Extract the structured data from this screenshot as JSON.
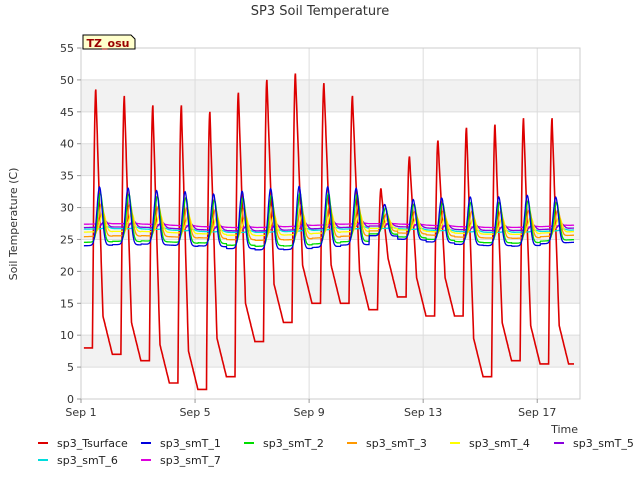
{
  "chart_data": {
    "type": "line",
    "title": "SP3 Soil Temperature",
    "xlabel": "Time",
    "ylabel": "Soil Temperature (C)",
    "badge": "TZ_osu",
    "xlim": [
      1,
      18.5
    ],
    "ylim": [
      0,
      55
    ],
    "yticks": [
      0,
      5,
      10,
      15,
      20,
      25,
      30,
      35,
      40,
      45,
      50,
      55
    ],
    "xticks": [
      {
        "value": 1,
        "label": "Sep 1"
      },
      {
        "value": 5,
        "label": "Sep 5"
      },
      {
        "value": 9,
        "label": "Sep 9"
      },
      {
        "value": 13,
        "label": "Sep 13"
      },
      {
        "value": 17,
        "label": "Sep 17"
      }
    ],
    "grid": true,
    "legend_position": "bottom",
    "day_start": 1.1,
    "day_end": 18.3,
    "surface_peaks": [
      48.5,
      47.5,
      46,
      46,
      45,
      48,
      50,
      51,
      49.5,
      47.5,
      33,
      38,
      40.5,
      42.5,
      43,
      44
    ],
    "surface_minima": [
      8,
      7,
      6,
      2.5,
      1.5,
      3.5,
      9,
      12,
      15,
      15,
      14,
      16,
      13,
      13,
      3.5,
      6,
      5.5
    ],
    "series": [
      {
        "name": "sp3_Tsurface",
        "color": "#dd0000",
        "base": 0,
        "amp": 0,
        "lag": 0
      },
      {
        "name": "sp3_smT_1",
        "color": "#0000dd",
        "base": 27,
        "amp": 9,
        "lag": 0.03
      },
      {
        "name": "sp3_smT_2",
        "color": "#00dd00",
        "base": 27,
        "amp": 7.5,
        "lag": 0.06
      },
      {
        "name": "sp3_smT_3",
        "color": "#ff9900",
        "base": 27,
        "amp": 5,
        "lag": 0.1
      },
      {
        "name": "sp3_smT_4",
        "color": "#ffff00",
        "base": 27,
        "amp": 3,
        "lag": 0.15
      },
      {
        "name": "sp3_smT_5",
        "color": "#8800dd",
        "base": 27,
        "amp": 1,
        "lag": 0.22
      },
      {
        "name": "sp3_smT_6",
        "color": "#00dddd",
        "base": 26.5,
        "amp": 0.3,
        "lag": 0.3
      },
      {
        "name": "sp3_smT_7",
        "color": "#dd00dd",
        "base": 27.2,
        "amp": 0.1,
        "lag": 0.3
      }
    ]
  }
}
